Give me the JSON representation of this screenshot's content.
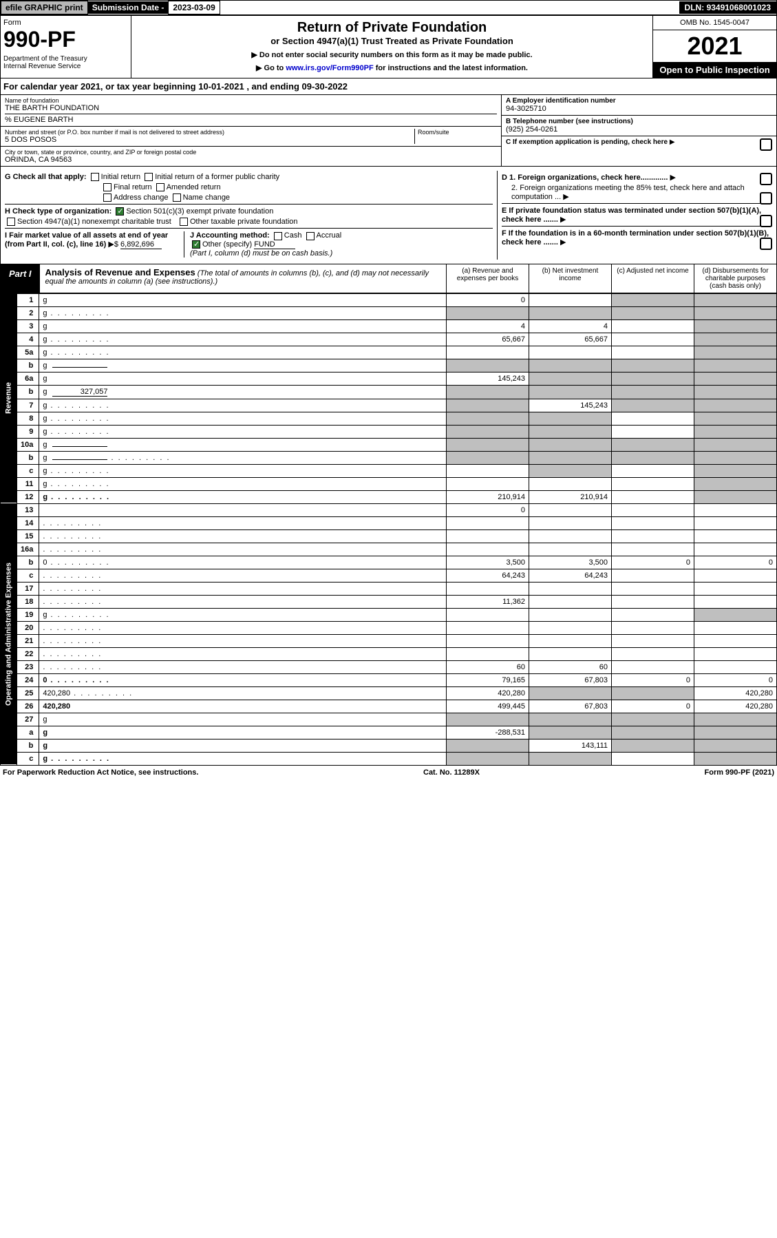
{
  "topbar": {
    "efile": "efile GRAPHIC print",
    "sub_label": "Submission Date -",
    "sub_date": "2023-03-09",
    "dln_label": "DLN:",
    "dln": "93491068001023"
  },
  "header": {
    "form_word": "Form",
    "form_num": "990-PF",
    "dept": "Department of the Treasury\nInternal Revenue Service",
    "title1": "Return of Private Foundation",
    "title2": "or Section 4947(a)(1) Trust Treated as Private Foundation",
    "instr1": "▶ Do not enter social security numbers on this form as it may be made public.",
    "instr2_pre": "▶ Go to ",
    "instr2_link": "www.irs.gov/Form990PF",
    "instr2_post": " for instructions and the latest information.",
    "omb": "OMB No. 1545-0047",
    "year": "2021",
    "open": "Open to Public Inspection"
  },
  "calyear": "For calendar year 2021, or tax year beginning 10-01-2021                           , and ending 09-30-2022",
  "info": {
    "name_label": "Name of foundation",
    "name": "THE BARTH FOUNDATION",
    "pct": "% EUGENE BARTH",
    "addr_label": "Number and street (or P.O. box number if mail is not delivered to street address)",
    "addr": "5 DOS POSOS",
    "room_label": "Room/suite",
    "city_label": "City or town, state or province, country, and ZIP or foreign postal code",
    "city": "ORINDA, CA  94563",
    "a_label": "A Employer identification number",
    "a_val": "94-3025710",
    "b_label": "B Telephone number (see instructions)",
    "b_val": "(925) 254-0261",
    "c_label": "C If exemption application is pending, check here",
    "d1": "D 1. Foreign organizations, check here.............",
    "d2": "2. Foreign organizations meeting the 85% test, check here and attach computation ...",
    "e": "E  If private foundation status was terminated under section 507(b)(1)(A), check here .......",
    "f": "F  If the foundation is in a 60-month termination under section 507(b)(1)(B), check here .......",
    "g_label": "G Check all that apply:",
    "g_opts": [
      "Initial return",
      "Initial return of a former public charity",
      "Final return",
      "Amended return",
      "Address change",
      "Name change"
    ],
    "h_label": "H Check type of organization:",
    "h_opts": [
      "Section 501(c)(3) exempt private foundation",
      "Section 4947(a)(1) nonexempt charitable trust",
      "Other taxable private foundation"
    ],
    "i_label": "I Fair market value of all assets at end of year (from Part II, col. (c), line 16)",
    "i_val": "6,892,696",
    "j_label": "J Accounting method:",
    "j_opts": [
      "Cash",
      "Accrual"
    ],
    "j_other": "Other (specify)",
    "j_other_val": "FUND",
    "j_note": "(Part I, column (d) must be on cash basis.)"
  },
  "part1": {
    "label": "Part I",
    "title": "Analysis of Revenue and Expenses",
    "note": "(The total of amounts in columns (b), (c), and (d) may not necessarily equal the amounts in column (a) (see instructions).)",
    "cols": {
      "a": "(a)   Revenue and expenses per books",
      "b": "(b)   Net investment income",
      "c": "(c)   Adjusted net income",
      "d": "(d)   Disbursements for charitable purposes (cash basis only)"
    }
  },
  "sections": {
    "revenue": "Revenue",
    "expenses": "Operating and Administrative Expenses"
  },
  "rows": [
    {
      "n": "1",
      "d": "g",
      "a": "0",
      "b": "",
      "c": "g"
    },
    {
      "n": "2",
      "d": "g",
      "dots": true,
      "a": "g",
      "b": "g",
      "c": "g"
    },
    {
      "n": "3",
      "d": "g",
      "a": "4",
      "b": "4",
      "c": ""
    },
    {
      "n": "4",
      "d": "g",
      "dots": true,
      "a": "65,667",
      "b": "65,667",
      "c": ""
    },
    {
      "n": "5a",
      "d": "g",
      "dots": true,
      "a": "",
      "b": "",
      "c": ""
    },
    {
      "n": "b",
      "d": "g",
      "inline": "",
      "a": "g",
      "b": "g",
      "c": "g"
    },
    {
      "n": "6a",
      "d": "g",
      "a": "145,243",
      "b": "g",
      "c": "g"
    },
    {
      "n": "b",
      "d": "g",
      "inline": "327,057",
      "a": "g",
      "b": "g",
      "c": "g"
    },
    {
      "n": "7",
      "d": "g",
      "dots": true,
      "a": "g",
      "b": "145,243",
      "c": "g"
    },
    {
      "n": "8",
      "d": "g",
      "dots": true,
      "a": "g",
      "b": "g",
      "c": ""
    },
    {
      "n": "9",
      "d": "g",
      "dots": true,
      "a": "g",
      "b": "g",
      "c": ""
    },
    {
      "n": "10a",
      "d": "g",
      "inline": "",
      "a": "g",
      "b": "g",
      "c": "g"
    },
    {
      "n": "b",
      "d": "g",
      "dots": true,
      "inline": "",
      "a": "g",
      "b": "g",
      "c": "g"
    },
    {
      "n": "c",
      "d": "g",
      "dots": true,
      "a": "",
      "b": "g",
      "c": ""
    },
    {
      "n": "11",
      "d": "g",
      "dots": true,
      "a": "",
      "b": "",
      "c": ""
    },
    {
      "n": "12",
      "d": "g",
      "bold": true,
      "dots": true,
      "a": "210,914",
      "b": "210,914",
      "c": ""
    },
    {
      "n": "13",
      "d": "",
      "a": "0",
      "b": "",
      "c": ""
    },
    {
      "n": "14",
      "d": "",
      "dots": true,
      "a": "",
      "b": "",
      "c": ""
    },
    {
      "n": "15",
      "d": "",
      "dots": true,
      "a": "",
      "b": "",
      "c": ""
    },
    {
      "n": "16a",
      "d": "",
      "dots": true,
      "a": "",
      "b": "",
      "c": ""
    },
    {
      "n": "b",
      "d": "0",
      "dots": true,
      "a": "3,500",
      "b": "3,500",
      "c": "0"
    },
    {
      "n": "c",
      "d": "",
      "dots": true,
      "a": "64,243",
      "b": "64,243",
      "c": ""
    },
    {
      "n": "17",
      "d": "",
      "dots": true,
      "a": "",
      "b": "",
      "c": ""
    },
    {
      "n": "18",
      "d": "",
      "dots": true,
      "a": "11,362",
      "b": "",
      "c": ""
    },
    {
      "n": "19",
      "d": "g",
      "dots": true,
      "a": "",
      "b": "",
      "c": ""
    },
    {
      "n": "20",
      "d": "",
      "dots": true,
      "a": "",
      "b": "",
      "c": ""
    },
    {
      "n": "21",
      "d": "",
      "dots": true,
      "a": "",
      "b": "",
      "c": ""
    },
    {
      "n": "22",
      "d": "",
      "dots": true,
      "a": "",
      "b": "",
      "c": ""
    },
    {
      "n": "23",
      "d": "",
      "dots": true,
      "a": "60",
      "b": "60",
      "c": ""
    },
    {
      "n": "24",
      "d": "0",
      "bold": true,
      "dots": true,
      "a": "79,165",
      "b": "67,803",
      "c": "0"
    },
    {
      "n": "25",
      "d": "420,280",
      "dots": true,
      "a": "420,280",
      "b": "g",
      "c": "g"
    },
    {
      "n": "26",
      "d": "420,280",
      "bold": true,
      "a": "499,445",
      "b": "67,803",
      "c": "0"
    },
    {
      "n": "27",
      "d": "g",
      "a": "g",
      "b": "g",
      "c": "g"
    },
    {
      "n": "a",
      "d": "g",
      "bold": true,
      "a": "-288,531",
      "b": "g",
      "c": "g"
    },
    {
      "n": "b",
      "d": "g",
      "bold": true,
      "a": "g",
      "b": "143,111",
      "c": "g"
    },
    {
      "n": "c",
      "d": "g",
      "bold": true,
      "dots": true,
      "a": "g",
      "b": "g",
      "c": ""
    }
  ],
  "footer": {
    "left": "For Paperwork Reduction Act Notice, see instructions.",
    "mid": "Cat. No. 11289X",
    "right": "Form 990-PF (2021)"
  },
  "colors": {
    "black": "#000000",
    "grey": "#bfbfbf",
    "green": "#2e7d32",
    "link": "#0000cc"
  }
}
